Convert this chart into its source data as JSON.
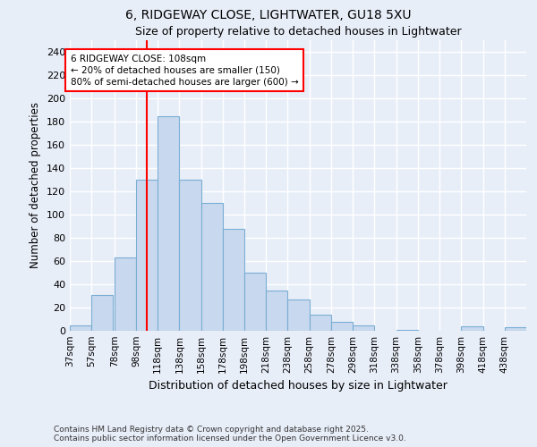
{
  "title1": "6, RIDGEWAY CLOSE, LIGHTWATER, GU18 5XU",
  "title2": "Size of property relative to detached houses in Lightwater",
  "xlabel": "Distribution of detached houses by size in Lightwater",
  "ylabel": "Number of detached properties",
  "footer": "Contains HM Land Registry data © Crown copyright and database right 2025.\nContains public sector information licensed under the Open Government Licence v3.0.",
  "bar_color": "#c8d8ee",
  "bar_edge_color": "#7aaed4",
  "background_color": "#e8eef8",
  "grid_color": "#ffffff",
  "red_line_x": 108,
  "annotation_line1": "6 RIDGEWAY CLOSE: 108sqm",
  "annotation_line2": "← 20% of detached houses are smaller (150)",
  "annotation_line3": "80% of semi-detached houses are larger (600) →",
  "bins": [
    37,
    57,
    78,
    98,
    118,
    138,
    158,
    178,
    198,
    218,
    238,
    258,
    278,
    298,
    318,
    338,
    358,
    378,
    398,
    418,
    438
  ],
  "bin_width": 20,
  "values": [
    5,
    31,
    63,
    130,
    185,
    130,
    110,
    88,
    50,
    35,
    27,
    14,
    8,
    5,
    0,
    1,
    0,
    0,
    4,
    0,
    3
  ],
  "ylim": [
    0,
    250
  ],
  "yticks": [
    0,
    20,
    40,
    60,
    80,
    100,
    120,
    140,
    160,
    180,
    200,
    220,
    240
  ]
}
